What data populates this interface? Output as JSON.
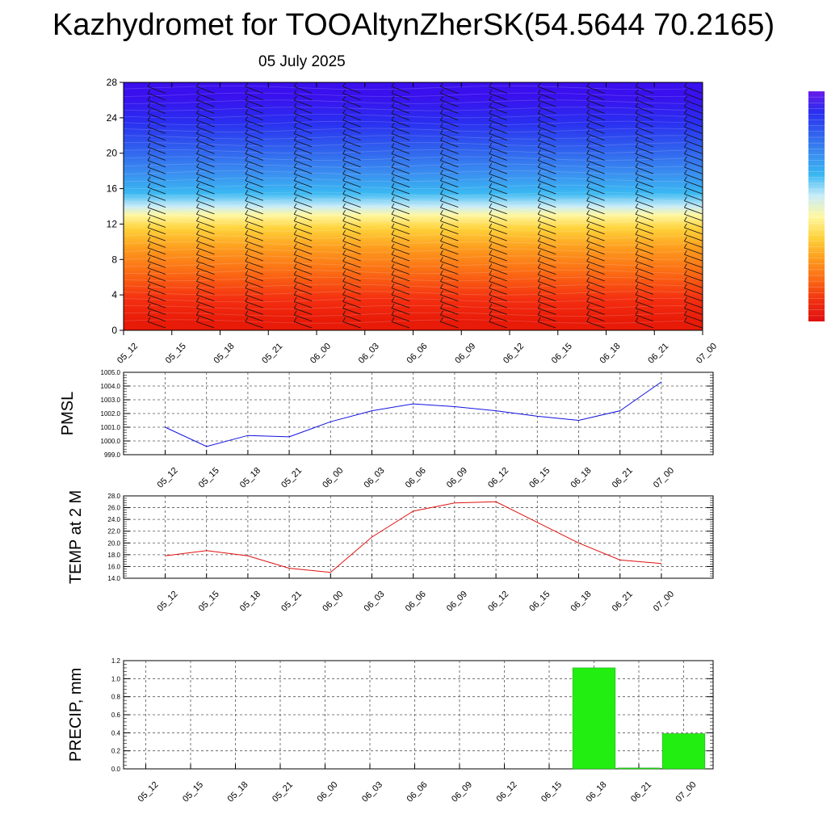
{
  "title": "Kazhydromet for TOOAltynZherSK(54.5644 70.2165)",
  "subtitle": "05 July 2025",
  "time_labels": [
    "05_12",
    "05_15",
    "05_18",
    "05_21",
    "06_00",
    "06_03",
    "06_06",
    "06_09",
    "06_12",
    "06_15",
    "06_18",
    "06_21",
    "07_00"
  ],
  "chart_data": [
    {
      "type": "heatmap",
      "ylim": [
        0,
        28
      ],
      "yticks": [
        0,
        4,
        8,
        12,
        16,
        20,
        24,
        28
      ],
      "color_bands": [
        {
          "from": 0,
          "to": 2,
          "color": "#e81a08"
        },
        {
          "from": 2,
          "to": 5,
          "color": "#f42f10"
        },
        {
          "from": 5,
          "to": 8,
          "color": "#fb6a14"
        },
        {
          "from": 8,
          "to": 10.5,
          "color": "#fd9c1e"
        },
        {
          "from": 10.5,
          "to": 12.5,
          "color": "#ffd23a"
        },
        {
          "from": 12.5,
          "to": 13.5,
          "color": "#fff7a0"
        },
        {
          "from": 13.5,
          "to": 14.5,
          "color": "#c8ecf8"
        },
        {
          "from": 14.5,
          "to": 16.5,
          "color": "#3ab8f2"
        },
        {
          "from": 16.5,
          "to": 19,
          "color": "#3a8ef0"
        },
        {
          "from": 19,
          "to": 22,
          "color": "#3060ee"
        },
        {
          "from": 22,
          "to": 25,
          "color": "#2a2ef0"
        },
        {
          "from": 25,
          "to": 28,
          "color": "#3a10ee"
        }
      ],
      "wind_barbs": true,
      "colorbar_colors": [
        "#e01010",
        "#f03010",
        "#fb6a14",
        "#fd9c1e",
        "#ffd23a",
        "#fff7a0",
        "#c8ecf8",
        "#3ab8f2",
        "#3a8ef0",
        "#3060ee",
        "#2a2ef0",
        "#6a1ae8"
      ]
    },
    {
      "type": "line",
      "ylabel": "PMSL",
      "ylim": [
        999.0,
        1005.0
      ],
      "yticks": [
        "999.0",
        "1000.0",
        "1001.0",
        "1002.0",
        "1003.0",
        "1004.0",
        "1005.0"
      ],
      "line_color": "#1010e0",
      "values": [
        1001.0,
        999.6,
        1000.4,
        1000.3,
        1001.4,
        1002.2,
        1002.7,
        1002.5,
        1002.2,
        1001.8,
        1001.5,
        1002.2,
        1004.3
      ]
    },
    {
      "type": "line",
      "ylabel": "TEMP at 2 M",
      "ylim": [
        14.0,
        28.0
      ],
      "yticks": [
        "14.0",
        "16.0",
        "18.0",
        "20.0",
        "22.0",
        "24.0",
        "26.0",
        "28.0"
      ],
      "line_color": "#e01010",
      "values": [
        17.8,
        18.7,
        17.8,
        15.7,
        15.0,
        21.0,
        25.4,
        26.8,
        27.0,
        23.5,
        20.0,
        17.1,
        16.5
      ]
    },
    {
      "type": "bar",
      "ylabel": "PRECIP, mm",
      "ylim": [
        0.0,
        1.2
      ],
      "yticks": [
        "0.0",
        "0.2",
        "0.4",
        "0.6",
        "0.8",
        "1.0",
        "1.2"
      ],
      "bar_color": "#22ee11",
      "values": [
        0,
        0,
        0,
        0,
        0,
        0,
        0,
        0,
        0,
        0,
        1.12,
        0.01,
        0.39
      ]
    }
  ]
}
